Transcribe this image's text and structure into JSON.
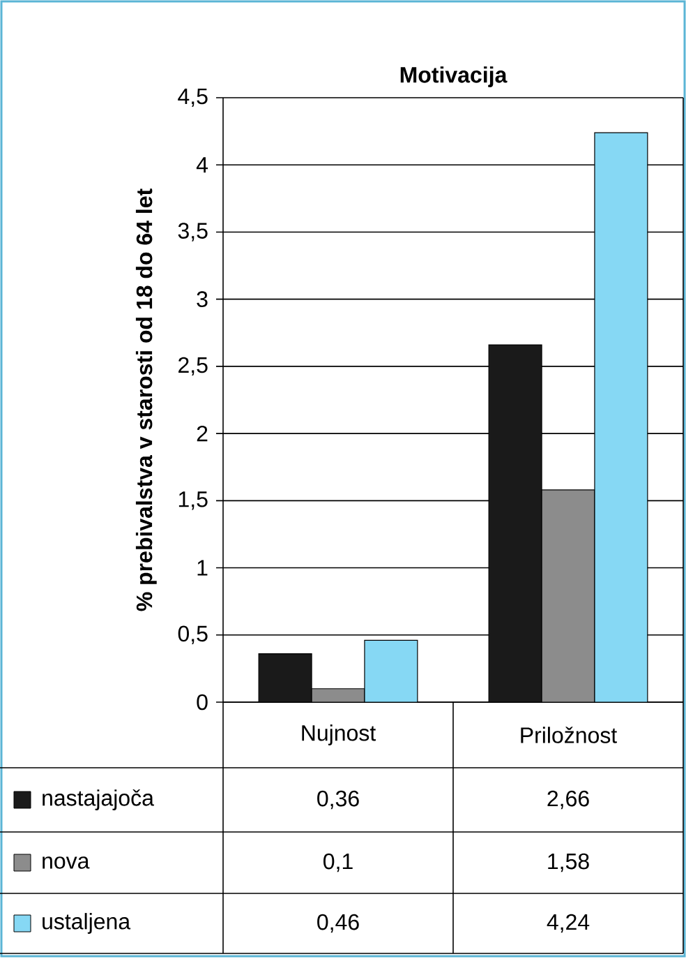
{
  "chart_data": {
    "type": "bar",
    "title": "Motivacija",
    "ylabel": "% prebivalstva v starosti od 18 do 64 let",
    "categories": [
      "Nujnost",
      "Priložnost"
    ],
    "series": [
      {
        "name": "nastajajoča",
        "color": "#1a1a1a",
        "values": [
          0.36,
          2.66
        ],
        "value_labels": [
          "0,36",
          "2,66"
        ]
      },
      {
        "name": "nova",
        "color": "#8c8c8c",
        "values": [
          0.1,
          1.58
        ],
        "value_labels": [
          "0,1",
          "1,58"
        ]
      },
      {
        "name": "ustaljena",
        "color": "#86d8f4",
        "values": [
          0.46,
          4.24
        ],
        "value_labels": [
          "0,46",
          "4,24"
        ]
      }
    ],
    "ylim": [
      0,
      4.5
    ],
    "yticks": [
      0,
      {
        "value": 0.5,
        "label": "0,5"
      },
      1,
      {
        "value": 1.5,
        "label": "1,5"
      },
      2,
      {
        "value": 2.5,
        "label": "2,5"
      },
      3,
      {
        "value": 3.5,
        "label": "3,5"
      },
      4,
      {
        "value": 4.5,
        "label": "4,5"
      }
    ],
    "grid": "y",
    "legend": "bottom"
  }
}
